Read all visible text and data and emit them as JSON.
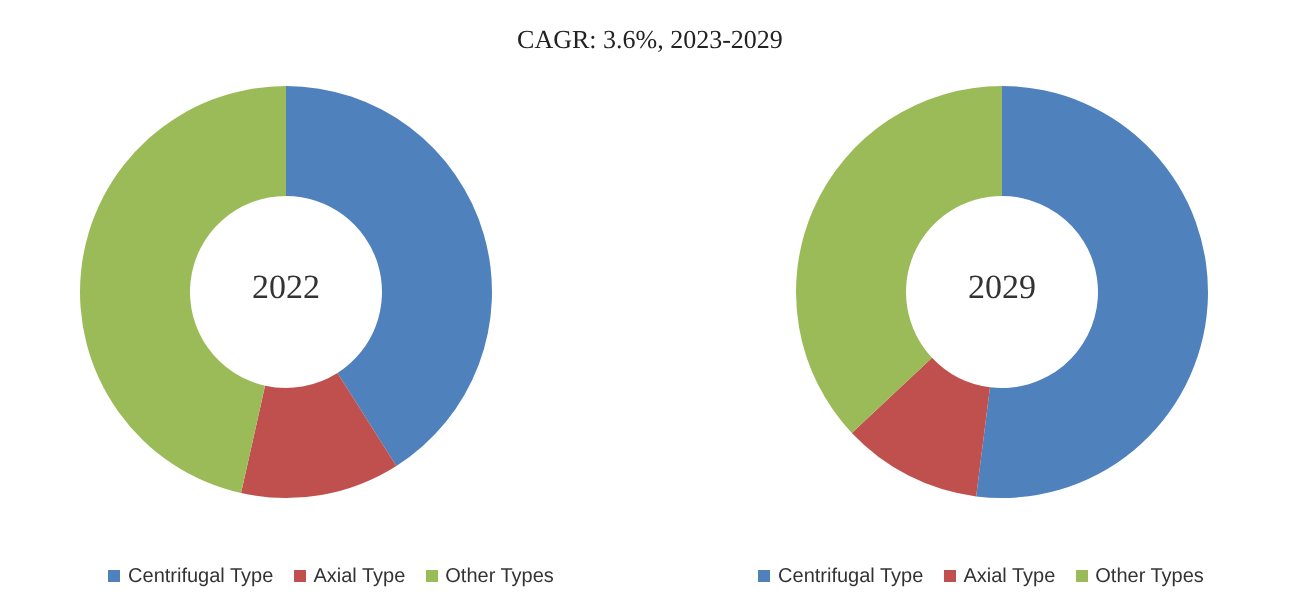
{
  "chart_data": [
    {
      "type": "donut",
      "title": "CAGR: 3.6%, 2023-2029",
      "annotations": [
        "2022"
      ],
      "categories": [
        "Centrifugal Type",
        "Axial Type",
        "Other Types"
      ],
      "values": [
        41,
        12.5,
        46.5
      ],
      "colors": [
        "#4f81bd",
        "#c0504d",
        "#9bbb59"
      ],
      "legend": "bottom"
    },
    {
      "type": "donut",
      "annotations": [
        "2029"
      ],
      "categories": [
        "Centrifugal Type",
        "Axial Type",
        "Other Types"
      ],
      "values": [
        52,
        11,
        37
      ],
      "colors": [
        "#4f81bd",
        "#c0504d",
        "#9bbb59"
      ],
      "legend": "bottom"
    }
  ]
}
